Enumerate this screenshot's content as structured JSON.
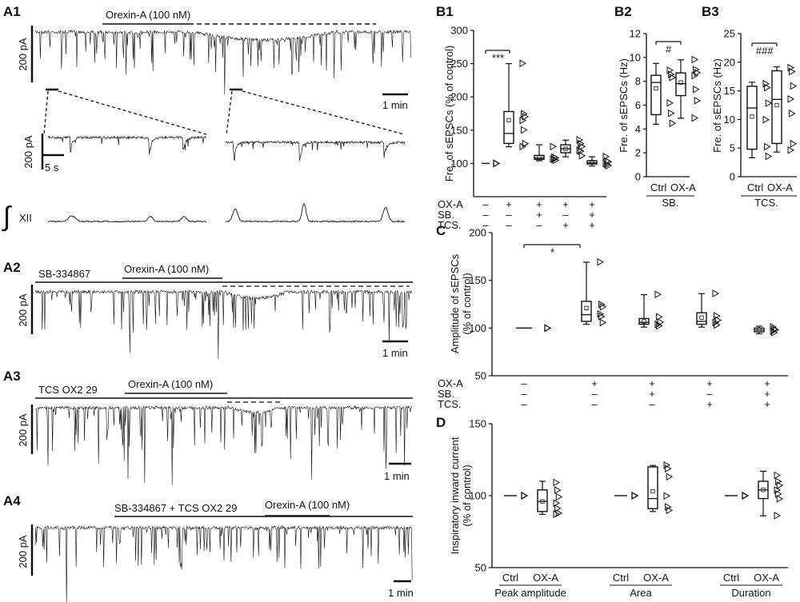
{
  "panels": {
    "A1": {
      "label": "A1",
      "drug_bar": "Orexin-A (100 nM)",
      "scale_y": "200 pA",
      "scale_x": "1 min",
      "inset_scale_y": "200 pA",
      "inset_scale_x": "5 s",
      "xii_label": "XII"
    },
    "A2": {
      "label": "A2",
      "pre_bar": "SB-334867",
      "drug_bar": "Orexin-A (100 nM)",
      "scale_y": "200 pA",
      "scale_x": "1 min"
    },
    "A3": {
      "label": "A3",
      "pre_bar": "TCS OX2 29",
      "drug_bar": "Orexin-A (100 nM)",
      "scale_y": "200 pA",
      "scale_x": "1 min"
    },
    "A4": {
      "label": "A4",
      "pre_bar": "SB-334867 + TCS OX2 29",
      "drug_bar": "Orexin-A (100 nM)",
      "scale_y": "200 pA",
      "scale_x": "1 min"
    },
    "B1": {
      "label": "B1"
    },
    "B2": {
      "label": "B2"
    },
    "B3": {
      "label": "B3"
    },
    "C": {
      "label": "C"
    },
    "D": {
      "label": "D"
    }
  },
  "chart_data": [
    {
      "id": "B1",
      "type": "box",
      "title": "",
      "ylabel": "Fre. of sEPSCs (% of control)",
      "ylim": [
        50,
        300
      ],
      "yticks": [
        100,
        150,
        200,
        250,
        300
      ],
      "condition_rows": [
        {
          "name": "OX-A",
          "marks": [
            "–",
            "+",
            "+",
            "+",
            "+"
          ]
        },
        {
          "name": "SB.",
          "marks": [
            "–",
            "–",
            "+",
            "–",
            "+"
          ]
        },
        {
          "name": "TCS.",
          "marks": [
            "–",
            "–",
            "–",
            "+",
            "+"
          ]
        }
      ],
      "groups": [
        {
          "q1": 100,
          "median": 100,
          "q3": 100,
          "min": 100,
          "max": 100,
          "mean": 100,
          "points": [
            100,
            100,
            100,
            100,
            100,
            100
          ]
        },
        {
          "q1": 130,
          "median": 145,
          "q3": 178,
          "min": 125,
          "max": 250,
          "mean": 165,
          "points": [
            250,
            175,
            170,
            165,
            150,
            130,
            125
          ]
        },
        {
          "q1": 106,
          "median": 108,
          "q3": 112,
          "min": 104,
          "max": 128,
          "mean": 109,
          "points": [
            125,
            110,
            108,
            107,
            106,
            105
          ]
        },
        {
          "q1": 116,
          "median": 122,
          "q3": 128,
          "min": 110,
          "max": 135,
          "mean": 122,
          "points": [
            135,
            130,
            125,
            120,
            118,
            112
          ]
        },
        {
          "q1": 99,
          "median": 101,
          "q3": 104,
          "min": 96,
          "max": 110,
          "mean": 102,
          "points": [
            110,
            104,
            102,
            100,
            98,
            97
          ]
        }
      ],
      "significance": [
        {
          "from": 0,
          "to": 1,
          "label": "***"
        }
      ]
    },
    {
      "id": "B2",
      "type": "box",
      "title": "",
      "ylabel": "Fre. of sEPSCs (Hz)",
      "ylim": [
        0,
        12
      ],
      "yticks": [
        0,
        2,
        4,
        6,
        8,
        10,
        12
      ],
      "categories": [
        "Ctrl",
        "OX-A"
      ],
      "group_label": "SB.",
      "groups": [
        {
          "q1": 5.2,
          "median": 7.9,
          "q3": 8.5,
          "min": 4.4,
          "max": 9.5,
          "mean": 7.4,
          "points": [
            8.9,
            8.6,
            8.3,
            6.2,
            5.3,
            4.5
          ]
        },
        {
          "q1": 6.8,
          "median": 7.8,
          "q3": 8.7,
          "min": 4.9,
          "max": 9.8,
          "mean": 7.9,
          "points": [
            9.8,
            9.0,
            8.7,
            8.5,
            7.3,
            6.4,
            4.9
          ]
        }
      ],
      "significance": [
        {
          "from": 0,
          "to": 1,
          "label": "#"
        }
      ]
    },
    {
      "id": "B3",
      "type": "box",
      "title": "",
      "ylabel": "Fre. of sEPSCs (Hz)",
      "ylim": [
        0,
        25
      ],
      "yticks": [
        0,
        5,
        10,
        15,
        20,
        25
      ],
      "categories": [
        "Ctrl",
        "OX-A"
      ],
      "group_label": "TCS.",
      "groups": [
        {
          "q1": 4.8,
          "median": 12.0,
          "q3": 15.8,
          "min": 3.3,
          "max": 16.5,
          "mean": 10.5,
          "points": [
            16.2,
            15.6,
            12.8,
            10.0,
            5.2,
            3.6
          ]
        },
        {
          "q1": 5.8,
          "median": 13.5,
          "q3": 18.5,
          "min": 4.3,
          "max": 19.2,
          "mean": 12.5,
          "points": [
            19.0,
            18.4,
            15.8,
            13.6,
            11.0,
            5.8,
            4.6
          ]
        }
      ],
      "significance": [
        {
          "from": 0,
          "to": 1,
          "label": "###"
        }
      ]
    },
    {
      "id": "C",
      "type": "box",
      "title": "",
      "ylabel": "Amplitude of sEPSCs (% of control)",
      "ylim": [
        50,
        200
      ],
      "yticks": [
        50,
        100,
        150,
        200
      ],
      "condition_rows": [
        {
          "name": "OX-A",
          "marks": [
            "–",
            "+",
            "+",
            "+",
            "+"
          ]
        },
        {
          "name": "SB.",
          "marks": [
            "–",
            "–",
            "+",
            "–",
            "+"
          ]
        },
        {
          "name": "TCS.",
          "marks": [
            "–",
            "–",
            "–",
            "+",
            "+"
          ]
        }
      ],
      "groups": [
        {
          "q1": 100,
          "median": 100,
          "q3": 100,
          "min": 100,
          "max": 100,
          "mean": 100,
          "points": [
            100,
            100,
            100,
            100,
            100
          ]
        },
        {
          "q1": 107,
          "median": 114,
          "q3": 128,
          "min": 104,
          "max": 169,
          "mean": 121,
          "points": [
            169,
            125,
            122,
            115,
            112,
            106
          ]
        },
        {
          "q1": 104,
          "median": 106,
          "q3": 110,
          "min": 101,
          "max": 135,
          "mean": 107,
          "points": [
            135,
            112,
            106,
            104,
            102
          ]
        },
        {
          "q1": 104,
          "median": 107,
          "q3": 116,
          "min": 101,
          "max": 136,
          "mean": 111,
          "points": [
            136,
            113,
            108,
            106,
            103
          ]
        },
        {
          "q1": 96,
          "median": 98,
          "q3": 100,
          "min": 94,
          "max": 102,
          "mean": 98,
          "points": [
            101,
            99,
            98,
            97,
            95
          ]
        }
      ],
      "significance": [
        {
          "from": 0,
          "to": 1,
          "label": "*"
        }
      ]
    },
    {
      "id": "D",
      "type": "box",
      "title": "",
      "ylabel": "Inspiratory inward current (% of control)",
      "ylim": [
        50,
        150
      ],
      "yticks": [
        50,
        100,
        150
      ],
      "subgroups": [
        {
          "label": "Peak amplitude",
          "categories": [
            "Ctrl",
            "OX-A"
          ]
        },
        {
          "label": "Area",
          "categories": [
            "Ctrl",
            "OX-A"
          ]
        },
        {
          "label": "Duration",
          "categories": [
            "Ctrl",
            "OX-A"
          ]
        }
      ],
      "groups": [
        {
          "q1": 100,
          "median": 100,
          "q3": 100,
          "min": 100,
          "max": 100,
          "mean": 100,
          "points": [
            100,
            100,
            100,
            100,
            100
          ]
        },
        {
          "q1": 89,
          "median": 96,
          "q3": 104,
          "min": 87,
          "max": 110,
          "mean": 96,
          "points": [
            109,
            104,
            99,
            95,
            91,
            88,
            87
          ]
        },
        {
          "q1": 100,
          "median": 100,
          "q3": 100,
          "min": 100,
          "max": 100,
          "mean": 100,
          "points": [
            100,
            100,
            100,
            100,
            100
          ]
        },
        {
          "q1": 91,
          "median": 98,
          "q3": 120,
          "min": 89,
          "max": 121,
          "mean": 103,
          "points": [
            121,
            119,
            113,
            100,
            92,
            90
          ]
        },
        {
          "q1": 100,
          "median": 100,
          "q3": 100,
          "min": 100,
          "max": 100,
          "mean": 100,
          "points": [
            100,
            100,
            100,
            100,
            100
          ]
        },
        {
          "q1": 98,
          "median": 104,
          "q3": 110,
          "min": 86,
          "max": 117,
          "mean": 104,
          "points": [
            114,
            110,
            107,
            104,
            101,
            98,
            86
          ]
        }
      ]
    }
  ]
}
